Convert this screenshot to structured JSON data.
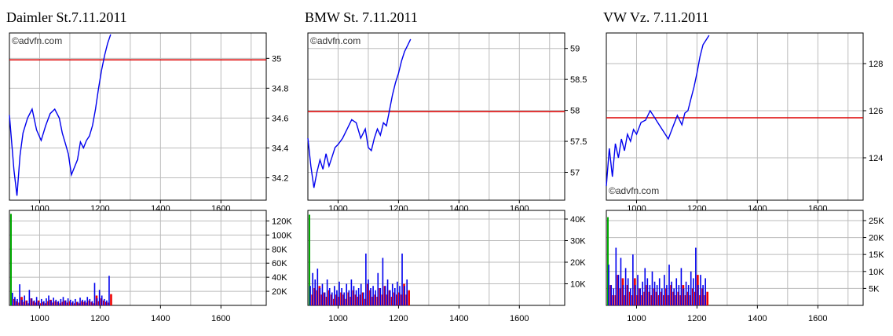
{
  "colors": {
    "price": "#0000ee",
    "ref": "#dd0000",
    "grid": "#bbbbbb",
    "vol_up": "#0000ee",
    "vol_down": "#ee0000",
    "vol_open": "#00aa00"
  },
  "chart_data": [
    {
      "title": "Daimler St.7.11.2011",
      "watermark": "©advfn.com",
      "watermark_pos": "top-left",
      "x_ticks": [
        "1000",
        "1400",
        "1200",
        "1600"
      ],
      "x_tick_values": [
        1000,
        1400,
        1200,
        1600
      ],
      "xlim": [
        900,
        1750
      ],
      "price": {
        "type": "line",
        "ylim": [
          34.05,
          35.17
        ],
        "y_ticks": [
          "35",
          "34.8",
          "34.6",
          "34.4",
          "34.2"
        ],
        "y_tick_values": [
          35,
          34.8,
          34.6,
          34.4,
          34.2
        ],
        "reference_line": 34.99,
        "x": [
          900,
          915,
          925,
          935,
          945,
          960,
          975,
          990,
          1005,
          1020,
          1035,
          1050,
          1065,
          1075,
          1085,
          1095,
          1105,
          1115,
          1125,
          1135,
          1145,
          1155,
          1165,
          1175,
          1185,
          1195,
          1205,
          1215,
          1225,
          1235
        ],
        "y": [
          34.62,
          34.25,
          34.08,
          34.35,
          34.5,
          34.6,
          34.66,
          34.52,
          34.45,
          34.55,
          34.63,
          34.66,
          34.6,
          34.5,
          34.43,
          34.36,
          34.22,
          34.27,
          34.32,
          34.44,
          34.4,
          34.45,
          34.48,
          34.55,
          34.66,
          34.8,
          34.92,
          35.02,
          35.1,
          35.16
        ]
      },
      "volume": {
        "type": "bar",
        "ylim": [
          0,
          135000
        ],
        "y_ticks": [
          "120K",
          "100K",
          "80K",
          "60K",
          "40K",
          "20K"
        ],
        "y_tick_values": [
          120000,
          100000,
          80000,
          60000,
          40000,
          20000
        ],
        "opening_spike": 130000,
        "x": [
          910,
          918,
          926,
          934,
          942,
          950,
          958,
          966,
          974,
          982,
          990,
          998,
          1006,
          1014,
          1022,
          1030,
          1038,
          1046,
          1054,
          1062,
          1070,
          1078,
          1086,
          1094,
          1102,
          1110,
          1118,
          1126,
          1134,
          1142,
          1150,
          1158,
          1166,
          1174,
          1182,
          1190,
          1198,
          1206,
          1214,
          1222,
          1230
        ],
        "up": [
          18000,
          12000,
          9000,
          30000,
          8000,
          14000,
          6000,
          22000,
          10000,
          7000,
          12000,
          5000,
          9000,
          6000,
          10000,
          14000,
          7000,
          11000,
          8000,
          6000,
          9000,
          12000,
          7000,
          10000,
          8000,
          6000,
          9000,
          5000,
          11000,
          8000,
          7000,
          12000,
          9000,
          6000,
          32000,
          10000,
          22000,
          14000,
          9000,
          7000,
          42000
        ],
        "down": [
          9000,
          6000,
          4000,
          12000,
          5000,
          7000,
          3000,
          10000,
          6000,
          4000,
          7000,
          3000,
          5000,
          3000,
          6000,
          8000,
          4000,
          6000,
          5000,
          3000,
          5000,
          7000,
          4000,
          6000,
          4000,
          3000,
          5000,
          3000,
          6000,
          5000,
          4000,
          7000,
          5000,
          3000,
          14000,
          6000,
          10000,
          7000,
          5000,
          4000,
          16000
        ]
      }
    },
    {
      "title": "BMW St. 7.11.2011",
      "watermark": "©advfn.com",
      "watermark_pos": "top-left",
      "x_ticks": [
        "1000",
        "1200",
        "1400",
        "1600"
      ],
      "x_tick_values": [
        1000,
        1200,
        1400,
        1600
      ],
      "xlim": [
        900,
        1750
      ],
      "price": {
        "type": "line",
        "ylim": [
          56.55,
          59.25
        ],
        "y_ticks": [
          "59",
          "58.5",
          "58",
          "57.5",
          "57"
        ],
        "y_tick_values": [
          59,
          58.5,
          58,
          57.5,
          57
        ],
        "reference_line": 57.98,
        "x": [
          900,
          910,
          920,
          930,
          940,
          950,
          960,
          970,
          980,
          990,
          1000,
          1015,
          1030,
          1045,
          1060,
          1075,
          1090,
          1100,
          1110,
          1120,
          1130,
          1140,
          1150,
          1160,
          1170,
          1180,
          1190,
          1200,
          1210,
          1220,
          1230,
          1240
        ],
        "y": [
          57.55,
          57.1,
          56.75,
          57.0,
          57.2,
          57.05,
          57.3,
          57.1,
          57.25,
          57.4,
          57.45,
          57.55,
          57.7,
          57.85,
          57.8,
          57.55,
          57.7,
          57.4,
          57.35,
          57.55,
          57.7,
          57.6,
          57.8,
          57.75,
          58.0,
          58.25,
          58.45,
          58.6,
          58.8,
          58.95,
          59.05,
          59.15
        ]
      },
      "volume": {
        "type": "bar",
        "ylim": [
          0,
          44000
        ],
        "y_ticks": [
          "40K",
          "30K",
          "20K",
          "10K"
        ],
        "y_tick_values": [
          40000,
          30000,
          20000,
          10000
        ],
        "opening_spike": 42000,
        "x": [
          908,
          916,
          924,
          932,
          940,
          948,
          956,
          964,
          972,
          980,
          988,
          996,
          1004,
          1012,
          1020,
          1028,
          1036,
          1044,
          1052,
          1060,
          1068,
          1076,
          1084,
          1092,
          1100,
          1108,
          1116,
          1124,
          1132,
          1140,
          1148,
          1156,
          1164,
          1172,
          1180,
          1188,
          1196,
          1204,
          1212,
          1220,
          1228
        ],
        "up": [
          9000,
          15000,
          12000,
          17000,
          8000,
          10000,
          6000,
          12000,
          8000,
          6000,
          9000,
          7000,
          11000,
          8000,
          6000,
          10000,
          7000,
          12000,
          9000,
          7000,
          8000,
          10000,
          6000,
          24000,
          12000,
          8000,
          9000,
          7000,
          15000,
          8000,
          22000,
          9000,
          12000,
          7000,
          10000,
          8000,
          11000,
          9000,
          24000,
          9000,
          12000
        ],
        "down": [
          5000,
          8000,
          7000,
          9000,
          5000,
          6000,
          4000,
          7000,
          5000,
          3000,
          5000,
          4000,
          6000,
          5000,
          3000,
          6000,
          4000,
          7000,
          5000,
          4000,
          5000,
          6000,
          3000,
          10000,
          7000,
          4000,
          5000,
          4000,
          8000,
          5000,
          9000,
          5000,
          7000,
          4000,
          6000,
          5000,
          6000,
          5000,
          10000,
          5000,
          7000
        ]
      }
    },
    {
      "title": "VW Vz. 7.11.2011",
      "watermark": "©advfn.com",
      "watermark_pos": "bottom-left",
      "x_ticks": [
        "1000",
        "1200",
        "1400",
        "1600"
      ],
      "x_tick_values": [
        1000,
        1200,
        1400,
        1600
      ],
      "xlim": [
        900,
        1750
      ],
      "price": {
        "type": "line",
        "ylim": [
          122.2,
          129.3
        ],
        "y_ticks": [
          "128",
          "126",
          "124"
        ],
        "y_tick_values": [
          128,
          126,
          124
        ],
        "reference_line": 125.7,
        "x": [
          900,
          910,
          920,
          930,
          940,
          950,
          960,
          970,
          980,
          990,
          1000,
          1015,
          1030,
          1045,
          1060,
          1075,
          1090,
          1105,
          1120,
          1135,
          1150,
          1160,
          1170,
          1180,
          1190,
          1200,
          1210,
          1220,
          1230,
          1240
        ],
        "y": [
          122.8,
          124.4,
          123.2,
          124.6,
          124.0,
          124.8,
          124.3,
          125.0,
          124.7,
          125.2,
          125.0,
          125.5,
          125.6,
          126.0,
          125.7,
          125.4,
          125.1,
          124.8,
          125.3,
          125.8,
          125.4,
          125.9,
          126.0,
          126.5,
          127.0,
          127.6,
          128.3,
          128.8,
          129.0,
          129.2
        ]
      },
      "volume": {
        "type": "bar",
        "ylim": [
          0,
          28000
        ],
        "y_ticks": [
          "25K",
          "20K",
          "15K",
          "10K",
          "5K"
        ],
        "y_tick_values": [
          25000,
          20000,
          15000,
          10000,
          5000
        ],
        "opening_spike": 26000,
        "x": [
          908,
          916,
          924,
          932,
          940,
          948,
          956,
          964,
          972,
          980,
          988,
          996,
          1004,
          1012,
          1020,
          1028,
          1036,
          1044,
          1052,
          1060,
          1068,
          1076,
          1084,
          1092,
          1100,
          1108,
          1116,
          1124,
          1132,
          1140,
          1148,
          1156,
          1164,
          1172,
          1180,
          1188,
          1196,
          1204,
          1212,
          1220,
          1228
        ],
        "up": [
          12000,
          6000,
          5000,
          17000,
          9000,
          14000,
          6000,
          11000,
          8000,
          5000,
          15000,
          6000,
          9000,
          5000,
          7000,
          11000,
          8000,
          6000,
          10000,
          7000,
          6000,
          8000,
          5000,
          9000,
          6000,
          12000,
          7000,
          5000,
          8000,
          6000,
          11000,
          5000,
          7000,
          6000,
          10000,
          8000,
          17000,
          6000,
          9000,
          6000,
          8000
        ],
        "down": [
          6000,
          3000,
          3000,
          9000,
          5000,
          8000,
          3000,
          6000,
          4000,
          3000,
          8000,
          3000,
          5000,
          3000,
          4000,
          6000,
          4000,
          3000,
          5000,
          4000,
          3000,
          4000,
          3000,
          5000,
          3000,
          6000,
          4000,
          3000,
          4000,
          3000,
          6000,
          3000,
          4000,
          3000,
          5000,
          4000,
          9000,
          3000,
          5000,
          3000,
          4000
        ]
      }
    }
  ]
}
